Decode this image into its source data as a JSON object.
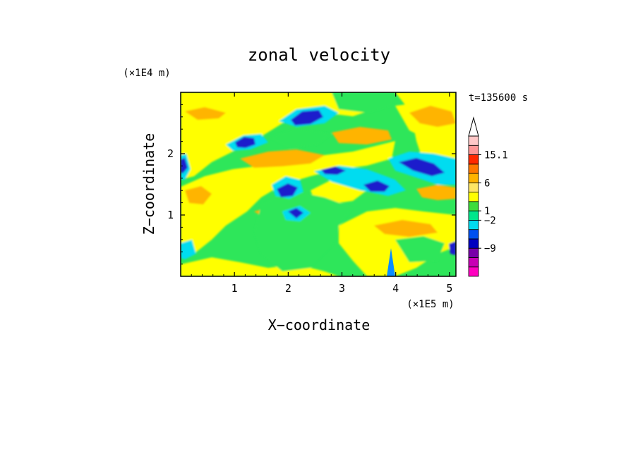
{
  "chart_data": {
    "type": "heatmap",
    "title": "zonal velocity",
    "xlabel": "X−coordinate",
    "ylabel": "Z−coordinate",
    "x_unit": "(×1E5 m)",
    "y_unit": "(×1E4 m)",
    "time_label": "t=135600 s",
    "xlim": [
      0,
      5.12
    ],
    "ylim": [
      0,
      3.0
    ],
    "x_ticks": [
      1,
      2,
      3,
      4,
      5
    ],
    "y_ticks": [
      1,
      2
    ],
    "x_tick_labels": [
      "1",
      "2",
      "3",
      "4",
      "5"
    ],
    "y_tick_labels": [
      "1",
      "2"
    ],
    "grid": false,
    "colorbar": {
      "extend": "max",
      "labeled_levels": [
        "15.1",
        "6",
        "1",
        "−2",
        "−9"
      ],
      "colors": [
        "#ff00c0",
        "#c800b4",
        "#7800a8",
        "#0000c0",
        "#0050f0",
        "#00dcf0",
        "#00e68c",
        "#3cdc3c",
        "#ffff00",
        "#ffe664",
        "#ffb400",
        "#ff7800",
        "#ff2800",
        "#ff9696",
        "#ffc8c8"
      ]
    },
    "field_colors": {
      "strong_negative": "#1e1ecc",
      "negative": "#0a8cff",
      "weak_negative": "#00dcf0",
      "near_zero": "#2ee65a",
      "weak_positive": "#ffff00",
      "positive": "#ffe664",
      "strong_positive": "#ffb400"
    }
  }
}
